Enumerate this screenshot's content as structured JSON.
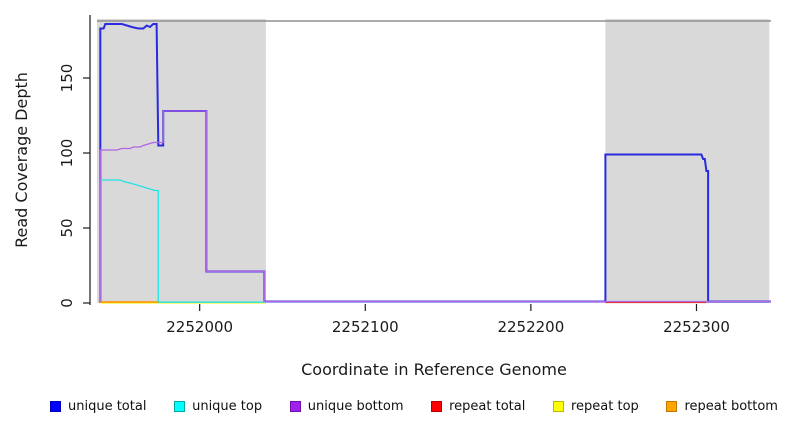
{
  "chart_data": {
    "type": "line",
    "title": "",
    "xlabel": "Coordinate in Reference Genome",
    "ylabel": "Read Coverage Depth",
    "xlim": [
      2251938,
      2252345
    ],
    "ylim": [
      0,
      190
    ],
    "grid": false,
    "legend_position": "bottom",
    "x_ticks": [
      {
        "label": "2252000",
        "coord": 2252000
      },
      {
        "label": "2252100",
        "coord": 2252100
      },
      {
        "label": "2252200",
        "coord": 2252200
      },
      {
        "label": "2252300",
        "coord": 2252300
      }
    ],
    "y_ticks": [
      {
        "label": "0",
        "value": 0
      },
      {
        "label": "50",
        "value": 50
      },
      {
        "label": "100",
        "value": 100
      },
      {
        "label": "150",
        "value": 150
      }
    ],
    "shaded_regions": [
      {
        "x1": 2251938,
        "x2": 2252040,
        "color": "#d9d9d9"
      },
      {
        "x1": 2252245,
        "x2": 2252344,
        "color": "#d9d9d9"
      }
    ],
    "top_boundary_line": {
      "value": 188,
      "color": "#8f8f8f"
    },
    "series": [
      {
        "name": "unique total",
        "color": "#2a2ae0",
        "width": 2,
        "points": [
          [
            2251940,
            0
          ],
          [
            2251940,
            183
          ],
          [
            2251942,
            183
          ],
          [
            2251943,
            186
          ],
          [
            2251953,
            186
          ],
          [
            2251956,
            185
          ],
          [
            2251959,
            184
          ],
          [
            2251963,
            183
          ],
          [
            2251966,
            183
          ],
          [
            2251968,
            185
          ],
          [
            2251970,
            184
          ],
          [
            2251972,
            186
          ],
          [
            2251974,
            186
          ],
          [
            2251975,
            105
          ],
          [
            2251978,
            105
          ],
          [
            2251978,
            128
          ],
          [
            2252004,
            128
          ],
          [
            2252004,
            21
          ],
          [
            2252039,
            21
          ],
          [
            2252039,
            1
          ],
          [
            2252245,
            1
          ],
          [
            2252245,
            99
          ],
          [
            2252303,
            99
          ],
          [
            2252304,
            96
          ],
          [
            2252305,
            96
          ],
          [
            2252306,
            88
          ],
          [
            2252307,
            88
          ],
          [
            2252307,
            1
          ],
          [
            2252345,
            1
          ]
        ]
      },
      {
        "name": "repeat total",
        "color": "#e23333",
        "width": 1.3,
        "points": [
          [
            2252245,
            0
          ],
          [
            2252306,
            0
          ]
        ]
      },
      {
        "name": "repeat top",
        "color": "#f0f000",
        "width": 1.3,
        "points": [
          [
            2251940,
            0
          ],
          [
            2252040,
            0
          ]
        ]
      },
      {
        "name": "unique top",
        "color": "#23e3e3",
        "width": 1.3,
        "points": [
          [
            2251940,
            0
          ],
          [
            2251940,
            82
          ],
          [
            2251952,
            82
          ],
          [
            2251954,
            81
          ],
          [
            2251958,
            80
          ],
          [
            2251961,
            79
          ],
          [
            2251964,
            78
          ],
          [
            2251967,
            77
          ],
          [
            2251970,
            76
          ],
          [
            2251973,
            75
          ],
          [
            2251975,
            75
          ],
          [
            2251975,
            0
          ],
          [
            2252040,
            0
          ]
        ]
      },
      {
        "name": "unique bottom",
        "color": "#b166e3",
        "width": 1.3,
        "points": [
          [
            2251940,
            0
          ],
          [
            2251940,
            102
          ],
          [
            2251950,
            102
          ],
          [
            2251953,
            103
          ],
          [
            2251958,
            103
          ],
          [
            2251960,
            104
          ],
          [
            2251964,
            104
          ],
          [
            2251966,
            105
          ],
          [
            2251969,
            106
          ],
          [
            2251972,
            107
          ],
          [
            2251978,
            107
          ],
          [
            2251978,
            128
          ],
          [
            2252004,
            128
          ],
          [
            2252004,
            21
          ],
          [
            2252039,
            21
          ],
          [
            2252039,
            1
          ],
          [
            2252345,
            1
          ]
        ]
      },
      {
        "name": "repeat bottom",
        "color": "#ff9000",
        "width": 1.5,
        "points": [
          [
            2251940,
            0
          ],
          [
            2251975,
            0
          ]
        ]
      }
    ]
  },
  "axis": {
    "x_label": "Coordinate in Reference Genome",
    "y_label": "Read Coverage Depth"
  },
  "legend": {
    "items": [
      {
        "label": "unique total",
        "color": "#0000ff",
        "border": "#0000b8"
      },
      {
        "label": "unique top",
        "color": "#00ffff",
        "border": "#00a8a8"
      },
      {
        "label": "unique bottom",
        "color": "#a020f0",
        "border": "#6e12a8"
      },
      {
        "label": "repeat total",
        "color": "#ff0000",
        "border": "#b80000"
      },
      {
        "label": "repeat top",
        "color": "#ffff00",
        "border": "#b8b800"
      },
      {
        "label": "repeat bottom",
        "color": "#ffa500",
        "border": "#c27600"
      }
    ]
  }
}
